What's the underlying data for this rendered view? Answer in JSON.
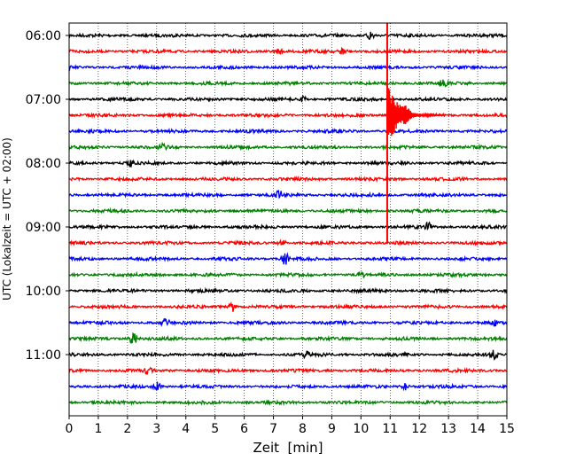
{
  "chart_data": {
    "type": "line",
    "title": "",
    "xlabel": "Zeit  [min]",
    "ylabel": "UTC (Lokalzeit = UTC + 02:00)",
    "xlim": [
      0,
      15
    ],
    "x_ticks": [
      0,
      1,
      2,
      3,
      4,
      5,
      6,
      7,
      8,
      9,
      10,
      11,
      12,
      13,
      14,
      15
    ],
    "y_tick_labels": [
      "06:00",
      "07:00",
      "08:00",
      "09:00",
      "10:00",
      "11:00"
    ],
    "y_tick_trace_index": [
      0,
      4,
      8,
      12,
      16,
      20
    ],
    "trace_start_times": [
      "06:00",
      "06:15",
      "06:30",
      "06:45",
      "07:00",
      "07:15",
      "07:30",
      "07:45",
      "08:00",
      "08:15",
      "08:30",
      "08:45",
      "09:00",
      "09:15",
      "09:30",
      "09:45",
      "10:00",
      "10:15",
      "10:30",
      "10:45",
      "11:00",
      "11:15",
      "11:30",
      "11:45"
    ],
    "trace_minutes_per_line": 15,
    "trace_colors": [
      "#000000",
      "#ff0000",
      "#0000ff",
      "#008000"
    ],
    "grid": "vertical dotted at each minute",
    "events": [
      {
        "trace": 0,
        "t": 10.35,
        "amp": 0.7
      },
      {
        "trace": 1,
        "t": 9.4,
        "amp": 0.5
      },
      {
        "trace": 1,
        "t": 7.2,
        "amp": 0.3
      },
      {
        "trace": 3,
        "t": 12.8,
        "amp": 0.4
      },
      {
        "trace": 4,
        "t": 8.0,
        "amp": 0.3
      },
      {
        "trace": 5,
        "t": 11.5,
        "amp": 0.6
      },
      {
        "trace": 7,
        "t": 3.2,
        "amp": 0.3
      },
      {
        "trace": 8,
        "t": 2.1,
        "amp": 0.35
      },
      {
        "trace": 10,
        "t": 7.2,
        "amp": 0.45
      },
      {
        "trace": 12,
        "t": 12.3,
        "amp": 0.5
      },
      {
        "trace": 13,
        "t": 7.3,
        "amp": 0.3
      },
      {
        "trace": 14,
        "t": 7.4,
        "amp": 0.7
      },
      {
        "trace": 15,
        "t": 10.0,
        "amp": 0.4
      },
      {
        "trace": 17,
        "t": 5.6,
        "amp": 0.6
      },
      {
        "trace": 18,
        "t": 3.3,
        "amp": 0.4
      },
      {
        "trace": 18,
        "t": 14.6,
        "amp": 0.3
      },
      {
        "trace": 19,
        "t": 2.2,
        "amp": 0.8
      },
      {
        "trace": 20,
        "t": 8.1,
        "amp": 0.4
      },
      {
        "trace": 20,
        "t": 14.55,
        "amp": 0.5
      },
      {
        "trace": 21,
        "t": 2.7,
        "amp": 0.3
      },
      {
        "trace": 22,
        "t": 3.0,
        "amp": 0.5
      },
      {
        "trace": 22,
        "t": 11.5,
        "amp": 0.4
      }
    ],
    "earthquake": {
      "trace": 5,
      "t_onset": 10.9,
      "duration_min": 2.0,
      "color": "#ff0000",
      "peak_amp_trace_spacings": 2.3,
      "spike_top_time": "06:00",
      "spike_bottom_time": "09:15"
    }
  }
}
